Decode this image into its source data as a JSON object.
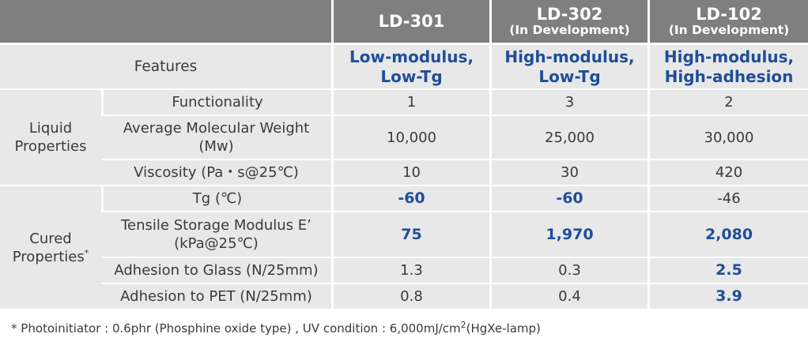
{
  "header": {
    "products": [
      {
        "name": "LD-301",
        "status": ""
      },
      {
        "name": "LD-302",
        "status": "(In Development)"
      },
      {
        "name": "LD-102",
        "status": "(In Development)"
      }
    ]
  },
  "features": {
    "label": "Features",
    "values": [
      {
        "line1": "Low-modulus,",
        "line2": "Low-Tg"
      },
      {
        "line1": "High-modulus,",
        "line2": "Low-Tg"
      },
      {
        "line1": "High-modulus,",
        "line2": "High-adhesion"
      }
    ]
  },
  "liquid": {
    "group_line1": "Liquid",
    "group_line2": "Properties",
    "rows": [
      {
        "label": "Functionality",
        "values": [
          "1",
          "3",
          "2"
        ]
      },
      {
        "label": "Average Molecular Weight",
        "label2": "(Mw)",
        "values": [
          "10,000",
          "25,000",
          "30,000"
        ]
      },
      {
        "label": "Viscosity (Pa・s@25℃)",
        "values": [
          "10",
          "30",
          "420"
        ]
      }
    ]
  },
  "cured": {
    "group_line1": "Cured",
    "group_line2": "Properties",
    "group_mark": "*",
    "rows": [
      {
        "label": "Tg (℃)",
        "values": [
          "-60",
          "-60",
          "-46"
        ],
        "highlight": [
          true,
          true,
          false
        ]
      },
      {
        "label": "Tensile Storage Modulus E’",
        "label2": "(kPa@25℃)",
        "values": [
          "75",
          "1,970",
          "2,080"
        ],
        "highlight": [
          true,
          true,
          true
        ]
      },
      {
        "label": "Adhesion to Glass (N/25mm)",
        "values": [
          "1.3",
          "0.3",
          "2.5"
        ],
        "highlight": [
          false,
          false,
          true
        ]
      },
      {
        "label": "Adhesion to PET (N/25mm)",
        "values": [
          "0.8",
          "0.4",
          "3.9"
        ],
        "highlight": [
          false,
          false,
          true
        ]
      }
    ]
  },
  "footnote": {
    "text": "* Photoinitiator : 0.6phr (Phosphine oxide type) , UV condition : 6,000mJ/cm",
    "superscript": "2",
    "suffix": "(HgXe-lamp)"
  },
  "colors": {
    "header_bg": "#7f7f7f",
    "cell_bg": "#e8e8e8",
    "highlight": "#1f4e9a"
  }
}
